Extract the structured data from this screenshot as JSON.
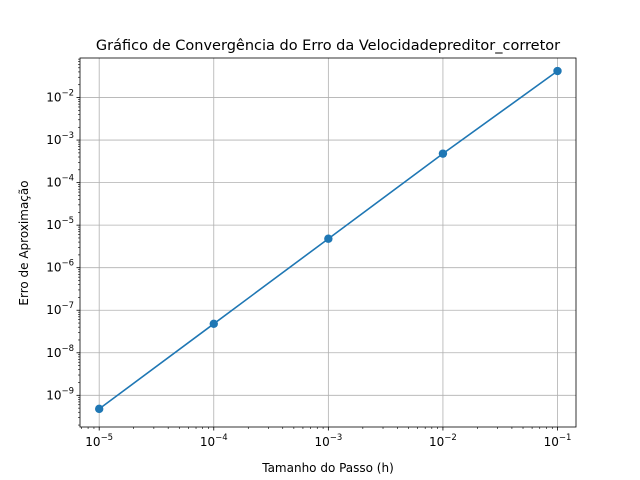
{
  "chart_data": {
    "type": "line",
    "title": "Gráfico de Convergência do Erro da Velocidadepreditor_corretor",
    "xlabel": "Tamanho do Passo (h)",
    "ylabel": "Erro de Aproximação",
    "x_scale": "log",
    "y_scale": "log",
    "grid": true,
    "xlim": [
      6.8e-06,
      0.145
    ],
    "ylim": [
      1.8e-10,
      0.085
    ],
    "x_ticks": [
      {
        "value": 1e-05,
        "base": "10",
        "exp": "−5"
      },
      {
        "value": 0.0001,
        "base": "10",
        "exp": "−4"
      },
      {
        "value": 0.001,
        "base": "10",
        "exp": "−3"
      },
      {
        "value": 0.01,
        "base": "10",
        "exp": "−2"
      },
      {
        "value": 0.1,
        "base": "10",
        "exp": "−1"
      }
    ],
    "y_ticks": [
      {
        "value": 1e-09,
        "base": "10",
        "exp": "−9"
      },
      {
        "value": 1e-08,
        "base": "10",
        "exp": "−8"
      },
      {
        "value": 1e-07,
        "base": "10",
        "exp": "−7"
      },
      {
        "value": 1e-06,
        "base": "10",
        "exp": "−6"
      },
      {
        "value": 1e-05,
        "base": "10",
        "exp": "−5"
      },
      {
        "value": 0.0001,
        "base": "10",
        "exp": "−4"
      },
      {
        "value": 0.001,
        "base": "10",
        "exp": "−3"
      },
      {
        "value": 0.01,
        "base": "10",
        "exp": "−2"
      }
    ],
    "series": [
      {
        "color": "#1f77b4",
        "marker": "circle",
        "x": [
          1e-05,
          0.0001,
          0.001,
          0.01,
          0.1
        ],
        "y": [
          4.8e-10,
          4.8e-08,
          4.8e-06,
          0.00048,
          0.042
        ]
      }
    ]
  }
}
